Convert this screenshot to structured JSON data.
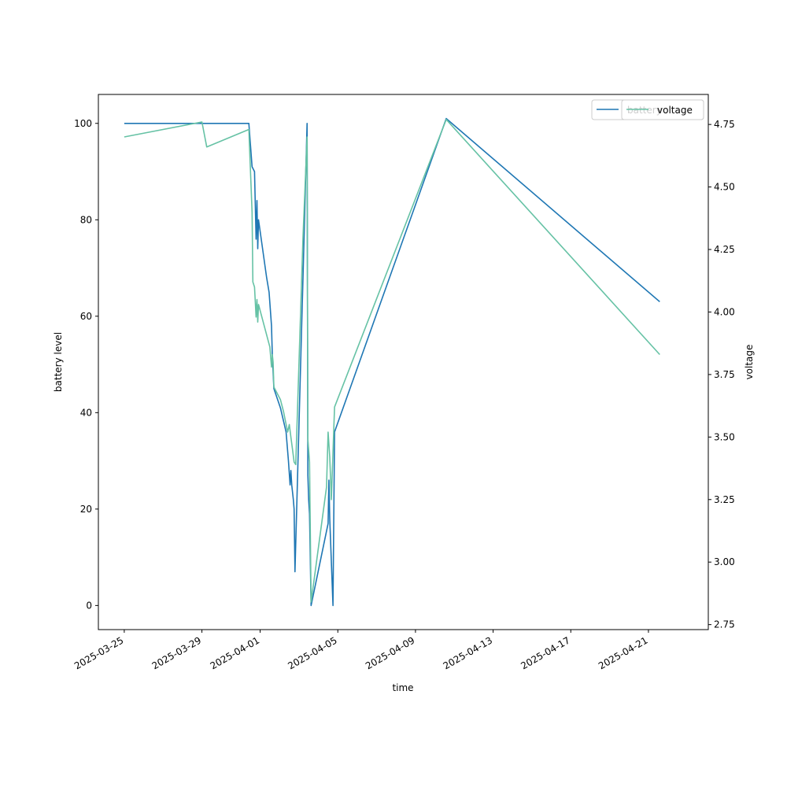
{
  "chart_data": {
    "type": "line",
    "xlabel": "time",
    "ylabel": "battery level",
    "y2label": "voltage",
    "xlim": [
      "2025-03-23T16:00",
      "2025-04-24T02:00"
    ],
    "ylim": [
      -5,
      106
    ],
    "y2lim": [
      2.73,
      4.87
    ],
    "x_ticks": [
      "2025-03-25",
      "2025-03-29",
      "2025-04-01",
      "2025-04-05",
      "2025-04-09",
      "2025-04-13",
      "2025-04-17",
      "2025-04-21"
    ],
    "y_ticks": [
      0,
      20,
      40,
      60,
      80,
      100
    ],
    "y2_ticks": [
      "2.75",
      "3.00",
      "3.25",
      "3.50",
      "3.75",
      "4.00",
      "4.25",
      "4.50",
      "4.75"
    ],
    "grid": false,
    "legend_position": "top-right",
    "legend_entries": [
      "battery",
      "voltage"
    ],
    "series": [
      {
        "name": "battery",
        "axis": "left",
        "color": "#1f77b4",
        "points": [
          [
            "2025-03-25T00:00",
            100
          ],
          [
            "2025-03-31T10:00",
            100
          ],
          [
            "2025-03-31T14:00",
            91
          ],
          [
            "2025-03-31T17:00",
            90
          ],
          [
            "2025-03-31T19:00",
            76
          ],
          [
            "2025-03-31T20:00",
            84
          ],
          [
            "2025-03-31T21:00",
            74
          ],
          [
            "2025-03-31T22:00",
            80
          ],
          [
            "2025-04-01T08:00",
            68
          ],
          [
            "2025-04-01T11:00",
            65
          ],
          [
            "2025-04-01T14:00",
            58
          ],
          [
            "2025-04-01T15:00",
            52
          ],
          [
            "2025-04-01T17:00",
            45
          ],
          [
            "2025-04-02T01:00",
            41
          ],
          [
            "2025-04-02T08:00",
            36
          ],
          [
            "2025-04-02T11:00",
            30
          ],
          [
            "2025-04-02T13:00",
            25
          ],
          [
            "2025-04-02T14:00",
            28
          ],
          [
            "2025-04-02T15:00",
            25
          ],
          [
            "2025-04-02T17:00",
            22
          ],
          [
            "2025-04-02T18:00",
            20
          ],
          [
            "2025-04-02T19:00",
            7
          ],
          [
            "2025-04-03T05:00",
            68
          ],
          [
            "2025-04-03T10:00",
            100
          ],
          [
            "2025-04-03T11:00",
            27
          ],
          [
            "2025-04-03T12:00",
            22
          ],
          [
            "2025-04-03T13:00",
            19
          ],
          [
            "2025-04-03T15:00",
            0
          ],
          [
            "2025-04-04T12:00",
            17
          ],
          [
            "2025-04-04T13:00",
            26
          ],
          [
            "2025-04-04T14:00",
            18
          ],
          [
            "2025-04-04T18:00",
            0
          ],
          [
            "2025-04-04T20:00",
            36
          ],
          [
            "2025-04-10T14:00",
            101
          ],
          [
            "2025-04-21T14:00",
            63
          ]
        ]
      },
      {
        "name": "voltage",
        "axis": "right",
        "color": "#66c2a5",
        "points": [
          [
            "2025-03-25T00:00",
            4.7
          ],
          [
            "2025-03-29T00:00",
            4.76
          ],
          [
            "2025-03-29T06:00",
            4.66
          ],
          [
            "2025-03-31T10:00",
            4.73
          ],
          [
            "2025-03-31T14:00",
            4.4
          ],
          [
            "2025-03-31T15:00",
            4.12
          ],
          [
            "2025-03-31T17:00",
            4.1
          ],
          [
            "2025-03-31T19:00",
            3.98
          ],
          [
            "2025-03-31T20:00",
            4.05
          ],
          [
            "2025-03-31T21:00",
            3.96
          ],
          [
            "2025-03-31T22:00",
            4.03
          ],
          [
            "2025-04-01T12:00",
            3.86
          ],
          [
            "2025-04-01T14:00",
            3.78
          ],
          [
            "2025-04-01T15:00",
            3.83
          ],
          [
            "2025-04-01T16:00",
            3.8
          ],
          [
            "2025-04-01T17:00",
            3.7
          ],
          [
            "2025-04-02T01:00",
            3.65
          ],
          [
            "2025-04-02T05:00",
            3.6
          ],
          [
            "2025-04-02T10:00",
            3.52
          ],
          [
            "2025-04-02T12:00",
            3.55
          ],
          [
            "2025-04-02T14:00",
            3.5
          ],
          [
            "2025-04-02T16:00",
            3.45
          ],
          [
            "2025-04-02T18:00",
            3.4
          ],
          [
            "2025-04-02T20:00",
            3.39
          ],
          [
            "2025-04-03T05:00",
            4.3
          ],
          [
            "2025-04-03T10:00",
            4.7
          ],
          [
            "2025-04-03T11:00",
            3.49
          ],
          [
            "2025-04-03T13:00",
            3.4
          ],
          [
            "2025-04-03T15:00",
            2.84
          ],
          [
            "2025-04-04T10:00",
            3.3
          ],
          [
            "2025-04-04T12:00",
            3.52
          ],
          [
            "2025-04-04T14:00",
            3.42
          ],
          [
            "2025-04-04T16:00",
            3.25
          ],
          [
            "2025-04-04T20:00",
            3.62
          ],
          [
            "2025-04-10T14:00",
            4.77
          ],
          [
            "2025-04-21T14:00",
            3.83
          ]
        ]
      }
    ]
  }
}
